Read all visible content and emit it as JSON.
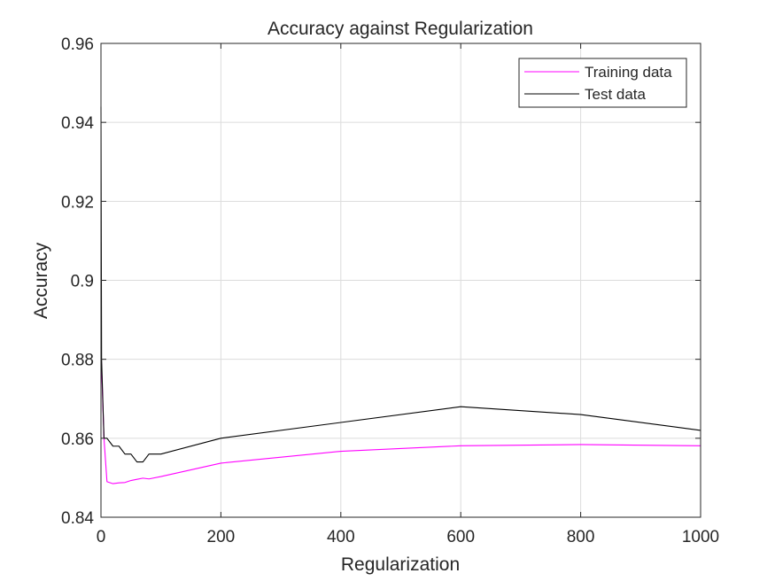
{
  "chart_data": {
    "type": "line",
    "title": "Accuracy against Regularization",
    "xlabel": "Regularization",
    "ylabel": "Accuracy",
    "xlim": [
      0,
      1000
    ],
    "ylim": [
      0.84,
      0.96
    ],
    "xticks": [
      0,
      200,
      400,
      600,
      800,
      1000
    ],
    "xtick_labels": [
      "0",
      "200",
      "400",
      "600",
      "800",
      "1000"
    ],
    "yticks": [
      0.84,
      0.86,
      0.88,
      0.9,
      0.92,
      0.94,
      0.96
    ],
    "ytick_labels": [
      "0.84",
      "0.86",
      "0.88",
      "0.9",
      "0.92",
      "0.94",
      "0.96"
    ],
    "grid": true,
    "legend_position": "top-right",
    "series": [
      {
        "name": "Training data",
        "color": "#ff00ff",
        "x": [
          0,
          1,
          5,
          10,
          20,
          30,
          40,
          50,
          60,
          70,
          80,
          100,
          200,
          400,
          600,
          800,
          1000
        ],
        "y": [
          0.883,
          0.878,
          0.86,
          0.849,
          0.8485,
          0.8487,
          0.8488,
          0.8493,
          0.8496,
          0.8499,
          0.8497,
          0.8503,
          0.8537,
          0.8567,
          0.8581,
          0.8584,
          0.8581
        ]
      },
      {
        "name": "Test data",
        "color": "#000000",
        "x": [
          0,
          1,
          5,
          10,
          20,
          30,
          40,
          50,
          60,
          70,
          80,
          100,
          200,
          400,
          600,
          800,
          1000
        ],
        "y": [
          0.944,
          0.88,
          0.86,
          0.86,
          0.858,
          0.858,
          0.856,
          0.856,
          0.854,
          0.854,
          0.856,
          0.856,
          0.86,
          0.864,
          0.868,
          0.866,
          0.862
        ]
      }
    ]
  }
}
